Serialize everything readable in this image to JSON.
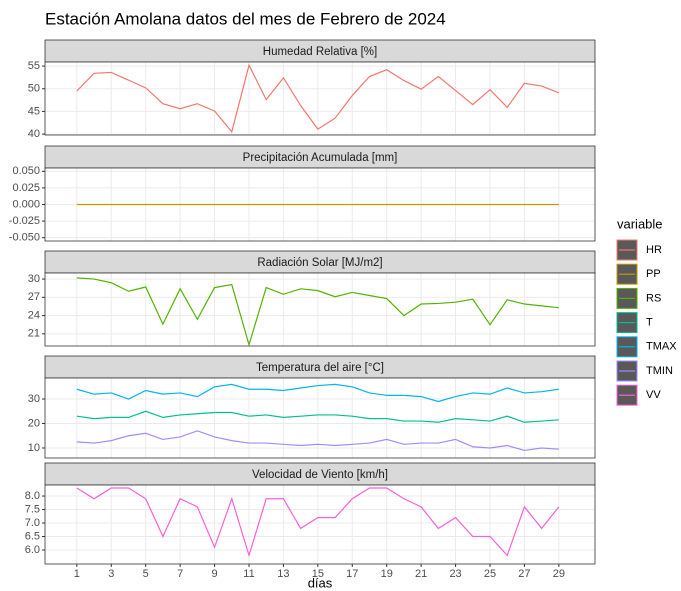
{
  "chart_data": {
    "type": "line",
    "title": "Estación Amolana datos del mes de Febrero de 2024",
    "xlabel": "días",
    "legend_title": "variable",
    "x": [
      1,
      2,
      3,
      4,
      5,
      6,
      7,
      8,
      9,
      10,
      11,
      12,
      13,
      14,
      15,
      16,
      17,
      18,
      19,
      20,
      21,
      22,
      23,
      24,
      25,
      26,
      27,
      28,
      29
    ],
    "xlim": [
      -0.85,
      31.1
    ],
    "xticks": [
      1,
      3,
      5,
      7,
      9,
      11,
      13,
      15,
      17,
      19,
      21,
      23,
      25,
      27,
      29
    ],
    "grid": true,
    "panels": [
      {
        "title": "Humedad Relativa [%]",
        "ylim": [
          39.8,
          55.9
        ],
        "yticks": [
          40,
          45,
          50,
          55
        ],
        "series": [
          {
            "name": "HR",
            "color": "#F8766D",
            "values": [
              49.5,
              53.4,
              53.6,
              51.9,
              50.2,
              46.7,
              45.6,
              46.7,
              45.1,
              40.5,
              55.2,
              47.6,
              52.4,
              46.3,
              41.1,
              43.5,
              48.5,
              52.7,
              54.2,
              51.8,
              49.9,
              52.7,
              49.6,
              46.5,
              49.8,
              45.9,
              51.2,
              50.6,
              49.1
            ]
          }
        ]
      },
      {
        "title": "Precipitación Acumulada [mm]",
        "ylim": [
          -0.055,
          0.055
        ],
        "yticks": [
          {
            "value": 0.05,
            "label": "0.050"
          },
          {
            "value": 0.025,
            "label": "0.025"
          },
          {
            "value": 0,
            "label": "0.000"
          },
          {
            "value": -0.025,
            "label": "-0.025"
          },
          {
            "value": -0.05,
            "label": "-0.050"
          }
        ],
        "series": [
          {
            "name": "PP",
            "color": "#C49A00",
            "values": [
              0,
              0,
              0,
              0,
              0,
              0,
              0,
              0,
              0,
              0,
              0,
              0,
              0,
              0,
              0,
              0,
              0,
              0,
              0,
              0,
              0,
              0,
              0,
              0,
              0,
              0,
              0,
              0,
              0
            ]
          }
        ]
      },
      {
        "title": "Radiación Solar [MJ/m2]",
        "ylim": [
          19,
          31
        ],
        "yticks": [
          21,
          24,
          27,
          30
        ],
        "series": [
          {
            "name": "RS",
            "color": "#53B400",
            "values": [
              30.2,
              30.0,
              29.4,
              28.0,
              28.7,
              22.6,
              28.4,
              23.4,
              28.6,
              29.1,
              19.2,
              28.6,
              27.5,
              28.4,
              28.1,
              27.1,
              27.8,
              27.3,
              26.8,
              24.0,
              25.9,
              26.0,
              26.2,
              26.7,
              22.5,
              26.6,
              25.9,
              25.6,
              25.3
            ]
          }
        ]
      },
      {
        "title": "Temperatura del aire [°C]",
        "ylim": [
          5.9,
          38.6
        ],
        "yticks": [
          10,
          20,
          30
        ],
        "series": [
          {
            "name": "T",
            "color": "#00C094",
            "values": [
              23,
              22,
              22.5,
              22.5,
              25,
              22.5,
              23.5,
              24,
              24.5,
              24.5,
              23,
              23.5,
              22.5,
              23,
              23.5,
              23.5,
              23,
              22,
              22,
              21,
              21,
              20.5,
              22,
              21.5,
              21,
              23,
              20.5,
              21,
              21.5
            ]
          },
          {
            "name": "TMAX",
            "color": "#00B6EB",
            "values": [
              34,
              32,
              32.5,
              30,
              33.5,
              32,
              32.5,
              31,
              35,
              36,
              34,
              34,
              33.5,
              34.5,
              35.5,
              36,
              35,
              32.5,
              31.5,
              31.5,
              31,
              29,
              31,
              32.5,
              32,
              34.5,
              32.5,
              33,
              34
            ]
          },
          {
            "name": "TMIN",
            "color": "#A58AFF",
            "values": [
              12.5,
              12,
              13,
              15,
              16,
              13.5,
              14.5,
              17,
              14.5,
              13,
              12,
              12,
              11.5,
              11,
              11.5,
              11,
              11.5,
              12,
              13.5,
              11.5,
              12,
              12,
              13.5,
              10.5,
              10,
              11,
              9,
              10,
              9.5
            ]
          }
        ]
      },
      {
        "title": "Velocidad de Viento [km/h]",
        "ylim": [
          5.48,
          8.41
        ],
        "yticks": [
          {
            "value": 6,
            "label": "6.0"
          },
          {
            "value": 6.5,
            "label": "6.5"
          },
          {
            "value": 7,
            "label": "7.0"
          },
          {
            "value": 7.5,
            "label": "7.5"
          },
          {
            "value": 8,
            "label": "8.0"
          }
        ],
        "series": [
          {
            "name": "VV",
            "color": "#FB61D7",
            "values": [
              8.3,
              7.9,
              8.3,
              8.3,
              7.9,
              6.5,
              7.9,
              7.6,
              6.1,
              7.9,
              5.8,
              7.9,
              7.9,
              6.8,
              7.2,
              7.2,
              7.9,
              8.3,
              8.3,
              7.9,
              7.6,
              6.8,
              7.2,
              6.5,
              6.5,
              5.8,
              7.6,
              6.8,
              7.6
            ]
          }
        ]
      }
    ]
  }
}
